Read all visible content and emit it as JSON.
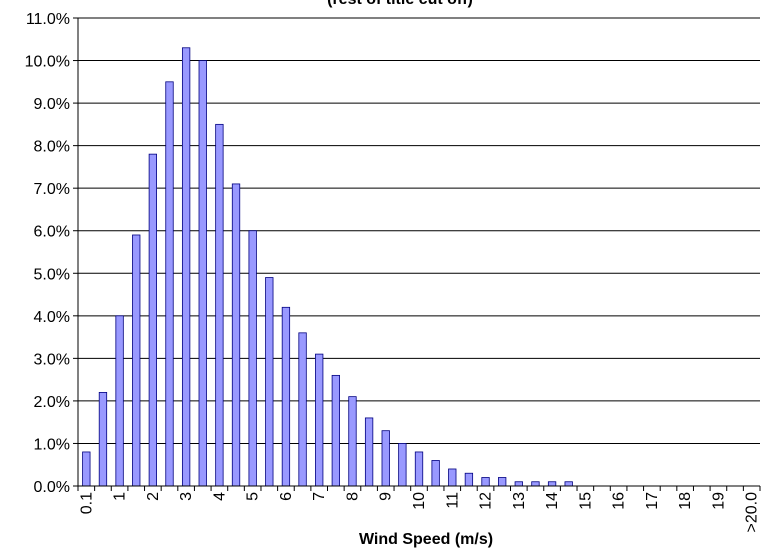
{
  "chart_data": {
    "type": "bar",
    "title": "(rest of title cut off)",
    "title_visible_fragment": "(rest of title cut off)",
    "xlabel": "Wind Speed (m/s)",
    "ylabel": "",
    "ylim": [
      0,
      11
    ],
    "y_tick_labels": [
      "0.0%",
      "1.0%",
      "2.0%",
      "3.0%",
      "4.0%",
      "5.0%",
      "6.0%",
      "7.0%",
      "8.0%",
      "9.0%",
      "10.0%",
      "11.0%"
    ],
    "x_tick_labels": [
      "0.1",
      "1",
      "2",
      "3",
      "4",
      "5",
      "6",
      "7",
      "8",
      "9",
      "10",
      "11",
      "12",
      "13",
      "14",
      "15",
      "16",
      "17",
      "18",
      "19",
      ">20.0"
    ],
    "grid": "horizontal",
    "bar_color": "#9999FF",
    "bar_edge_color": "#000080",
    "categories": [
      "0.1",
      "0.5",
      "1",
      "1.5",
      "2",
      "2.5",
      "3",
      "3.5",
      "4",
      "4.5",
      "5",
      "5.5",
      "6",
      "6.5",
      "7",
      "7.5",
      "8",
      "8.5",
      "9",
      "9.5",
      "10",
      "10.5",
      "11",
      "11.5",
      "12",
      "12.5",
      "13",
      "13.5",
      "14",
      "14.5",
      "15",
      "15.5",
      "16",
      "16.5",
      "17",
      "17.5",
      "18",
      "18.5",
      "19",
      "19.5",
      ">20.0"
    ],
    "values": [
      0.8,
      2.2,
      4.0,
      5.9,
      7.8,
      9.5,
      10.3,
      10.0,
      8.5,
      7.1,
      6.0,
      4.9,
      4.2,
      3.6,
      3.1,
      2.6,
      2.1,
      1.6,
      1.3,
      1.0,
      0.8,
      0.6,
      0.4,
      0.3,
      0.2,
      0.2,
      0.1,
      0.1,
      0.1,
      0.1,
      0,
      0,
      0,
      0,
      0,
      0,
      0,
      0,
      0,
      0,
      0
    ]
  }
}
